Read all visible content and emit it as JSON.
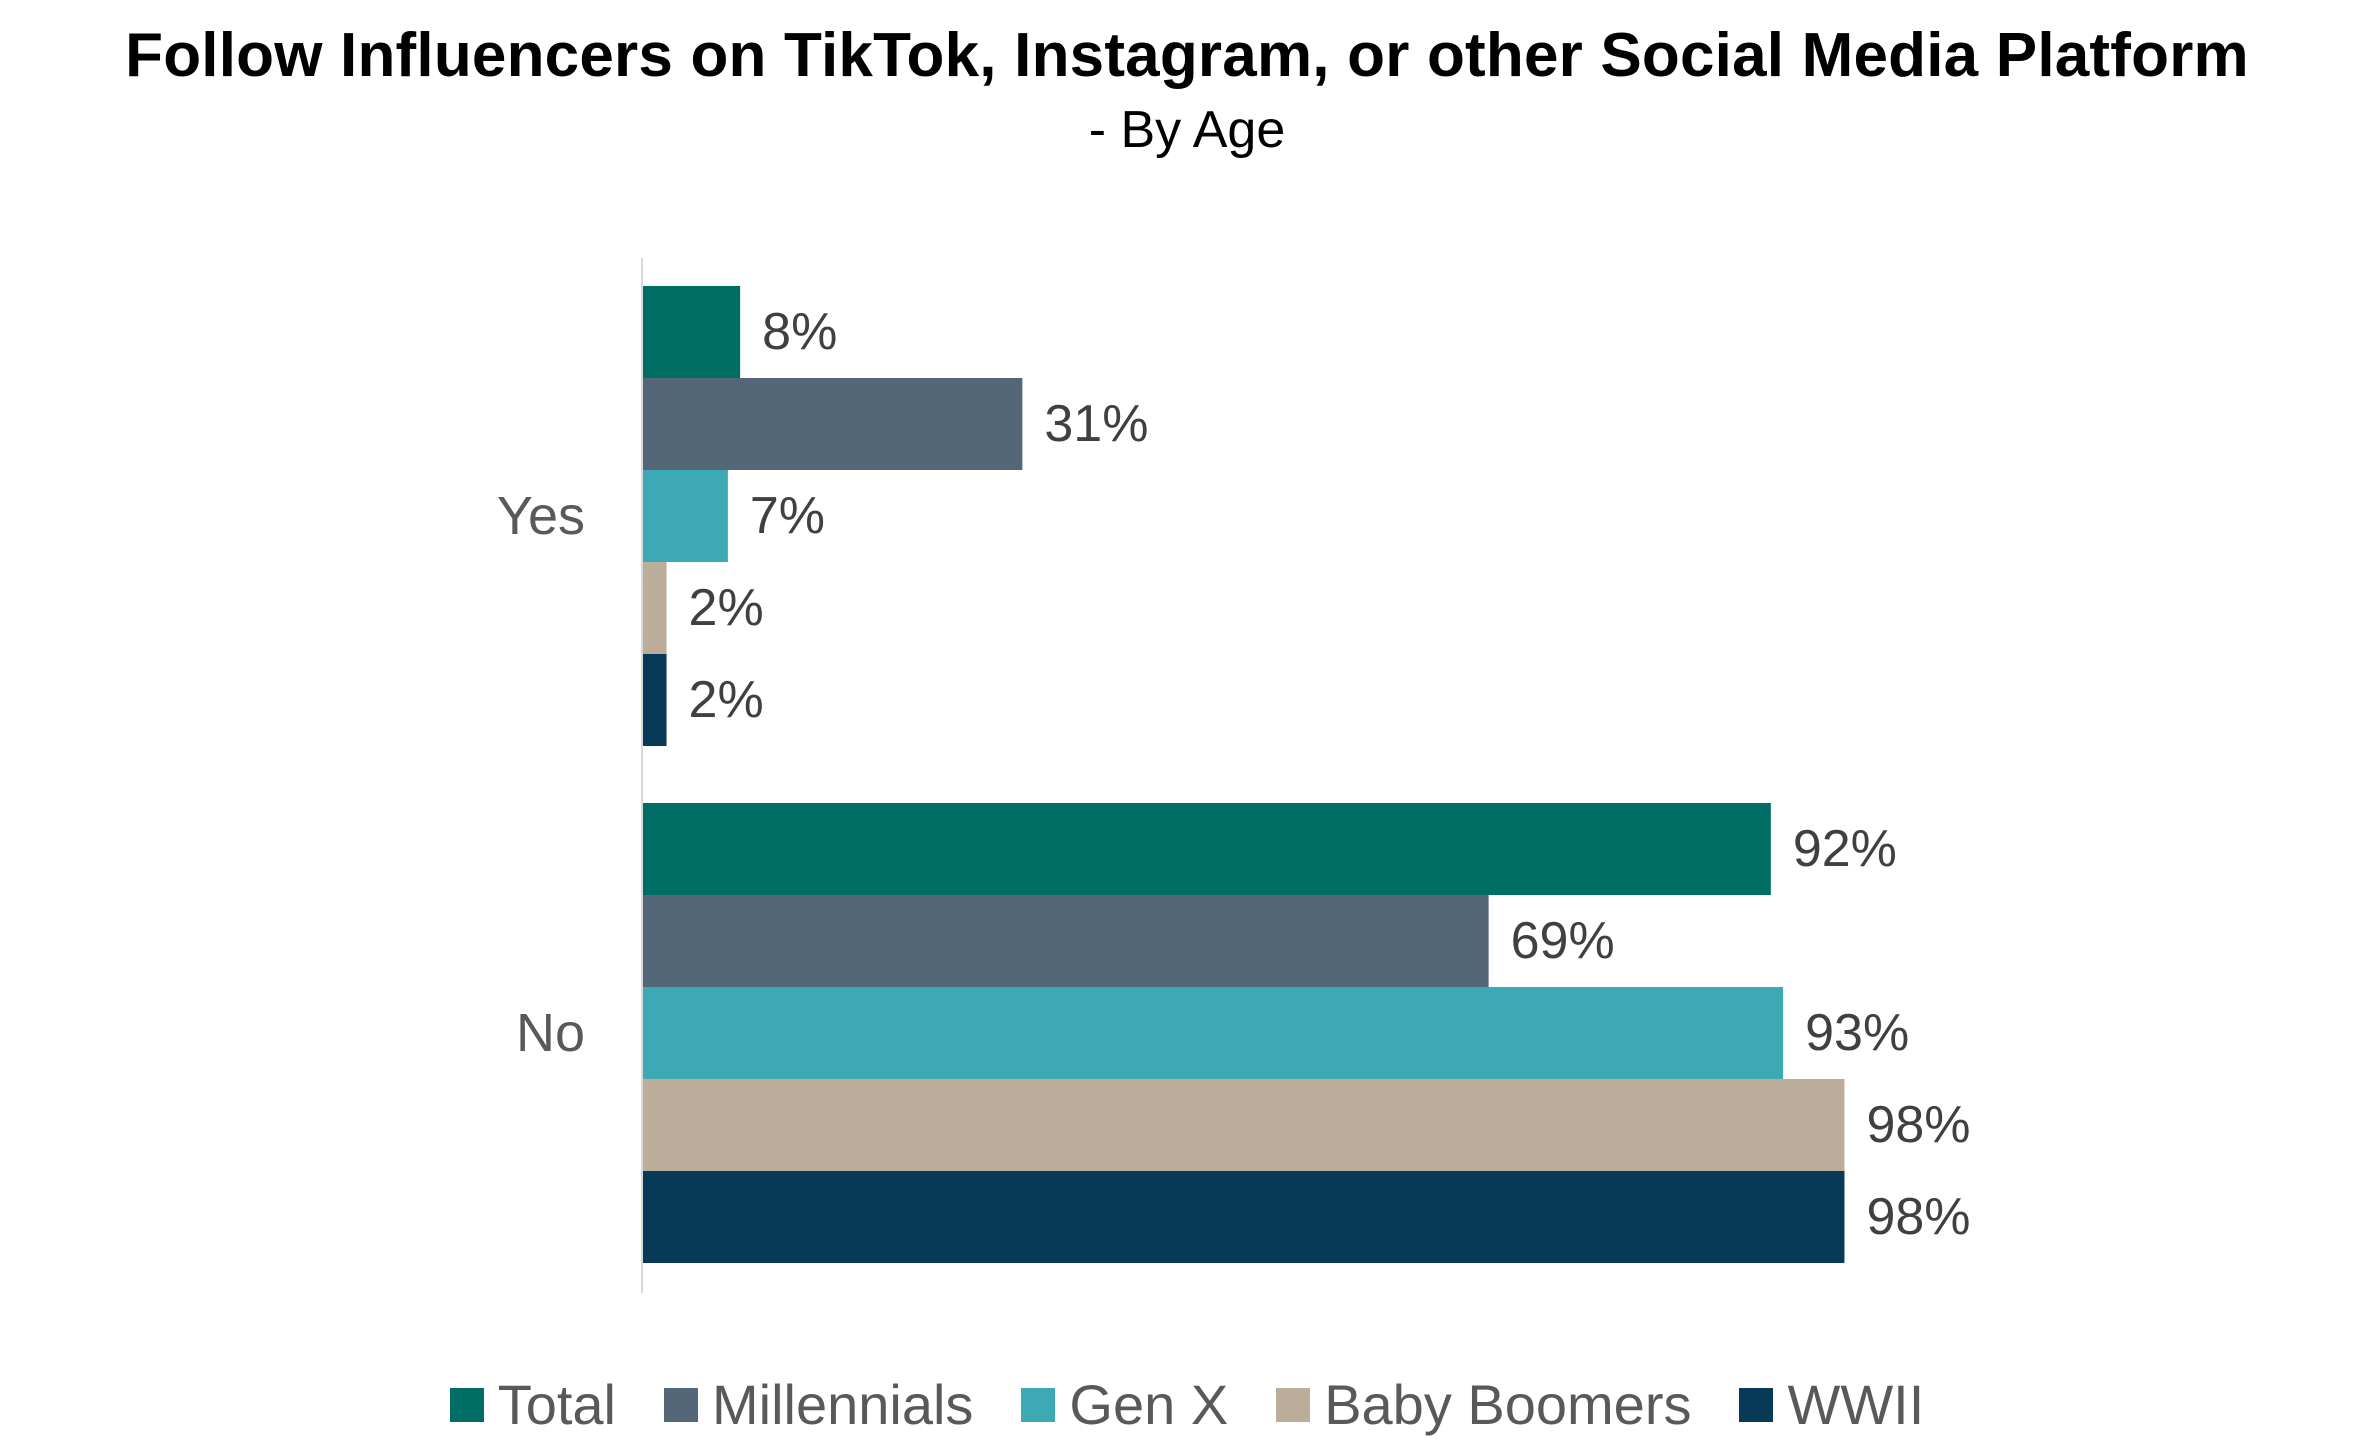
{
  "chart_data": {
    "type": "bar",
    "orientation": "horizontal",
    "title": "Follow Influencers on TikTok, Instagram, or other Social Media Platform",
    "subtitle": "- By Age",
    "categories": [
      "Yes",
      "No"
    ],
    "series": [
      {
        "name": "Total",
        "color": "#006e64",
        "values": [
          8,
          92
        ],
        "labels": [
          "8%",
          "92%"
        ]
      },
      {
        "name": "Millennials",
        "color": "#546778",
        "values": [
          31,
          69
        ],
        "labels": [
          "31%",
          "69%"
        ]
      },
      {
        "name": "Gen X",
        "color": "#3da9b5",
        "values": [
          7,
          93
        ],
        "labels": [
          "7%",
          "93%"
        ]
      },
      {
        "name": "Baby Boomers",
        "color": "#bbad9a",
        "values": [
          2,
          98
        ],
        "labels": [
          "2%",
          "98%"
        ]
      },
      {
        "name": "WWII",
        "color": "#063a56",
        "values": [
          2,
          98
        ],
        "labels": [
          "2%",
          "98%"
        ]
      }
    ],
    "xlim": [
      0,
      100
    ],
    "grid": false,
    "legend_position": "bottom"
  }
}
